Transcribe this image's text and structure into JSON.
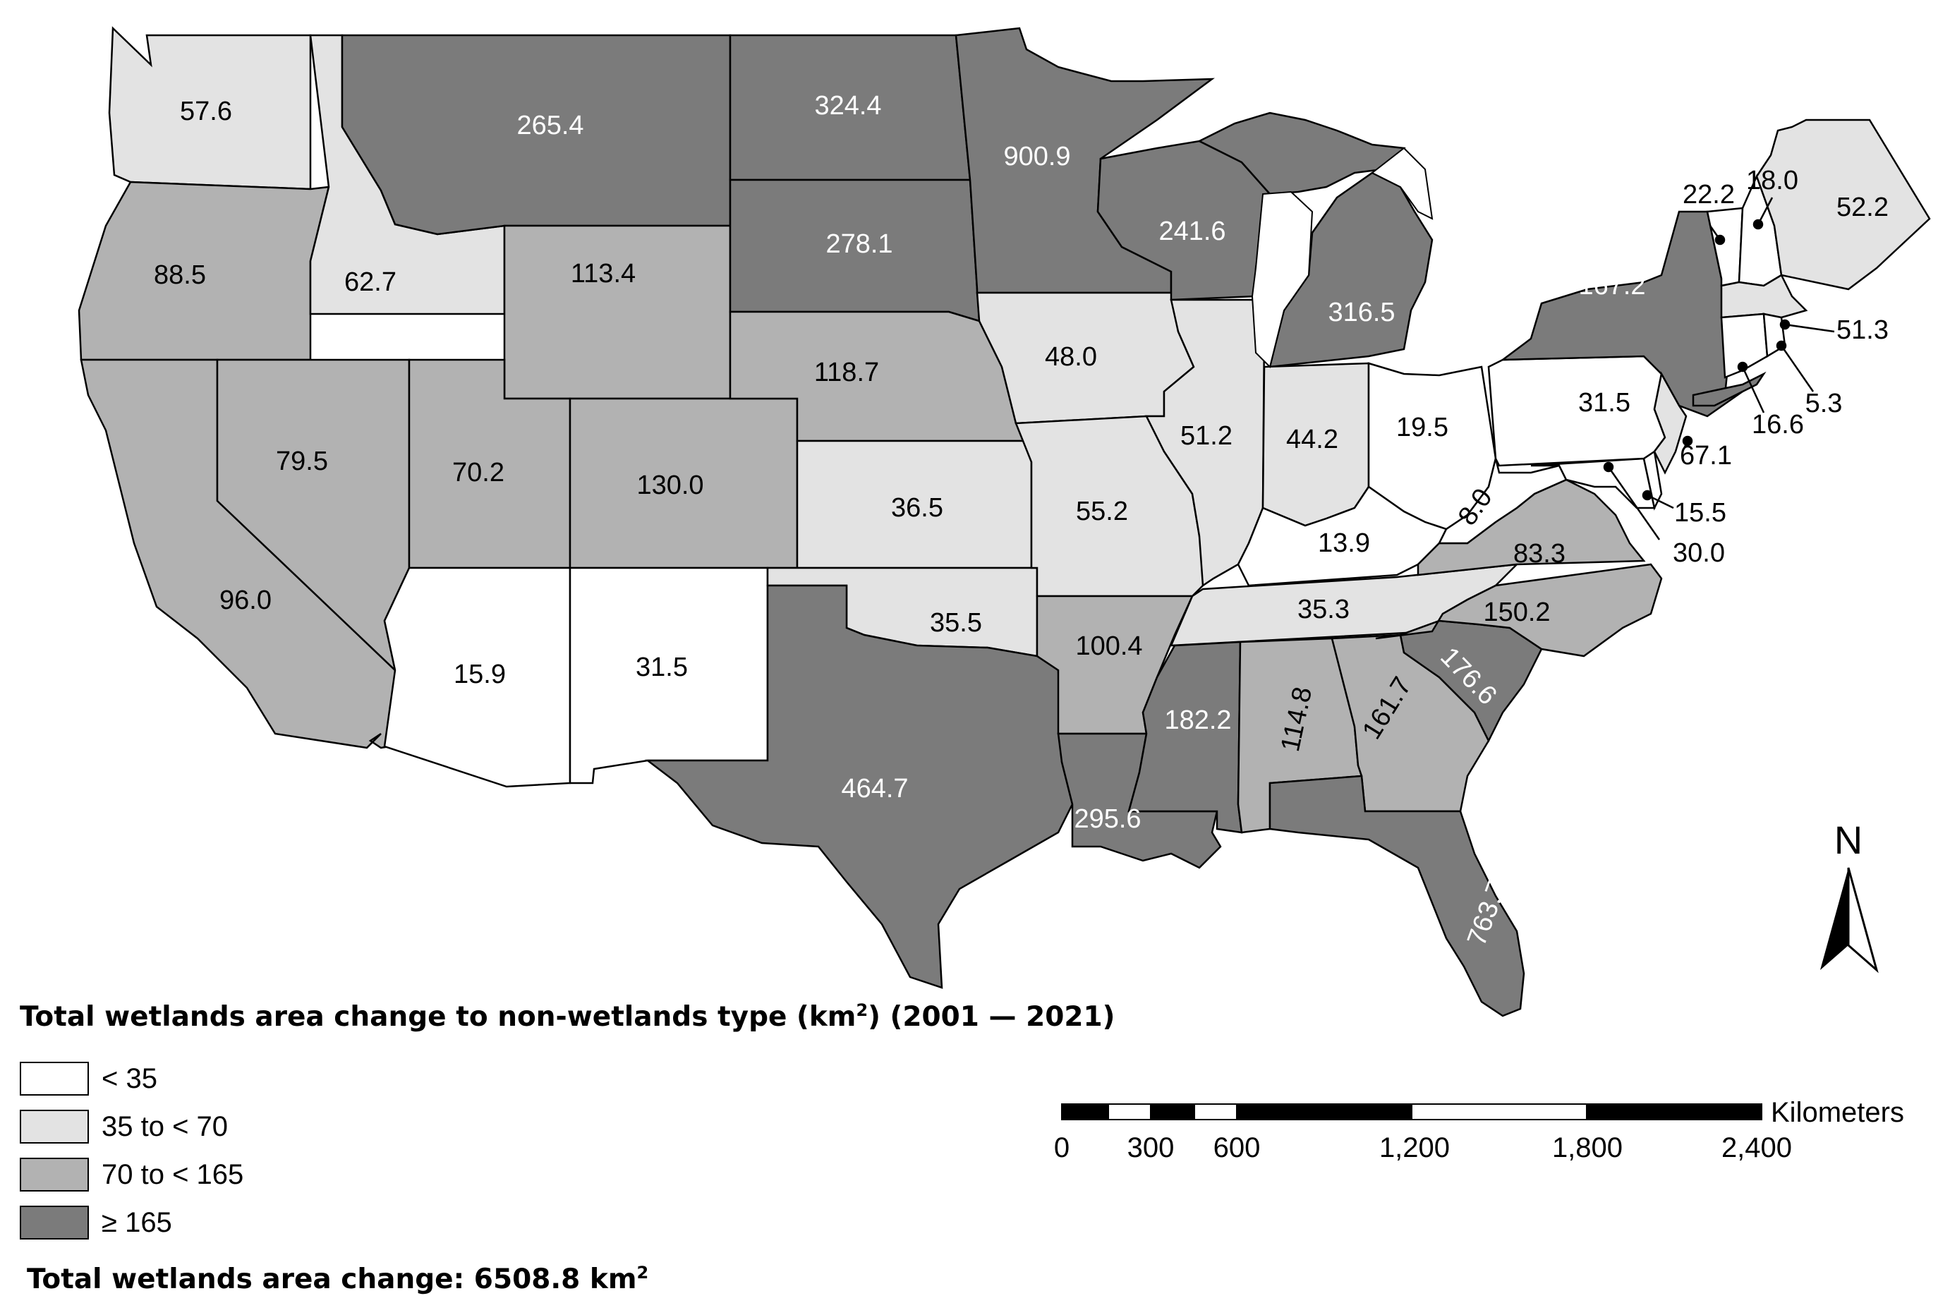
{
  "colors": {
    "under_35": "#ffffff",
    "35_to_70": "#e3e3e3",
    "70_to_165": "#b2b2b2",
    "165_plus": "#7b7b7b",
    "border": "#000000"
  },
  "states": [
    {
      "id": "WA",
      "value": "57.6",
      "cls": "35_to_70"
    },
    {
      "id": "OR",
      "value": "88.5",
      "cls": "70_to_165"
    },
    {
      "id": "CA",
      "value": "96.0",
      "cls": "70_to_165"
    },
    {
      "id": "ID",
      "value": "62.7",
      "cls": "35_to_70"
    },
    {
      "id": "NV",
      "value": "79.5",
      "cls": "70_to_165"
    },
    {
      "id": "MT",
      "value": "265.4",
      "cls": "165_plus"
    },
    {
      "id": "WY",
      "value": "113.4",
      "cls": "70_to_165"
    },
    {
      "id": "UT",
      "value": "70.2",
      "cls": "70_to_165"
    },
    {
      "id": "CO",
      "value": "130.0",
      "cls": "70_to_165"
    },
    {
      "id": "AZ",
      "value": "15.9",
      "cls": "under_35"
    },
    {
      "id": "NM",
      "value": "31.5",
      "cls": "under_35"
    },
    {
      "id": "ND",
      "value": "324.4",
      "cls": "165_plus"
    },
    {
      "id": "SD",
      "value": "278.1",
      "cls": "165_plus"
    },
    {
      "id": "NE",
      "value": "118.7",
      "cls": "70_to_165"
    },
    {
      "id": "KS",
      "value": "36.5",
      "cls": "35_to_70"
    },
    {
      "id": "OK",
      "value": "35.5",
      "cls": "35_to_70"
    },
    {
      "id": "TX",
      "value": "464.7",
      "cls": "165_plus"
    },
    {
      "id": "MN",
      "value": "900.9",
      "cls": "165_plus"
    },
    {
      "id": "IA",
      "value": "48.0",
      "cls": "35_to_70"
    },
    {
      "id": "MO",
      "value": "55.2",
      "cls": "35_to_70"
    },
    {
      "id": "AR",
      "value": "100.4",
      "cls": "70_to_165"
    },
    {
      "id": "LA",
      "value": "295.6",
      "cls": "165_plus"
    },
    {
      "id": "WI",
      "value": "241.6",
      "cls": "165_plus"
    },
    {
      "id": "IL",
      "value": "51.2",
      "cls": "35_to_70"
    },
    {
      "id": "MI",
      "value": "316.5",
      "cls": "165_plus"
    },
    {
      "id": "IN",
      "value": "44.2",
      "cls": "35_to_70"
    },
    {
      "id": "OH",
      "value": "19.5",
      "cls": "under_35"
    },
    {
      "id": "KY",
      "value": "13.9",
      "cls": "under_35"
    },
    {
      "id": "TN",
      "value": "35.3",
      "cls": "35_to_70"
    },
    {
      "id": "MS",
      "value": "182.2",
      "cls": "165_plus"
    },
    {
      "id": "AL",
      "value": "114.8",
      "cls": "70_to_165"
    },
    {
      "id": "GA",
      "value": "161.7",
      "cls": "70_to_165"
    },
    {
      "id": "FL",
      "value": "763.7",
      "cls": "165_plus"
    },
    {
      "id": "SC",
      "value": "176.6",
      "cls": "165_plus"
    },
    {
      "id": "NC",
      "value": "150.2",
      "cls": "70_to_165"
    },
    {
      "id": "VA",
      "value": "83.3",
      "cls": "70_to_165"
    },
    {
      "id": "WV",
      "value": "8.0",
      "cls": "under_35"
    },
    {
      "id": "PA",
      "value": "31.5",
      "cls": "under_35"
    },
    {
      "id": "NY",
      "value": "167.2",
      "cls": "165_plus"
    },
    {
      "id": "VT",
      "value": "22.2",
      "cls": "under_35"
    },
    {
      "id": "NH",
      "value": "18.0",
      "cls": "under_35"
    },
    {
      "id": "ME",
      "value": "52.2",
      "cls": "35_to_70"
    },
    {
      "id": "MA",
      "value": "51.3",
      "cls": "35_to_70"
    },
    {
      "id": "CT",
      "value": "16.6",
      "cls": "under_35"
    },
    {
      "id": "RI",
      "value": "5.3",
      "cls": "under_35"
    },
    {
      "id": "NJ",
      "value": "67.1",
      "cls": "35_to_70"
    },
    {
      "id": "DE",
      "value": "15.5",
      "cls": "under_35"
    },
    {
      "id": "MD",
      "value": "30.0",
      "cls": "under_35"
    }
  ],
  "legend": {
    "title": "Total wetlands area change to non-wetlands type (km",
    "title_sup": "2",
    "title_tail": ") (2001 — 2021)",
    "items": [
      {
        "label": "< 35",
        "cls": "under_35"
      },
      {
        "label": "35 to < 70",
        "cls": "35_to_70"
      },
      {
        "label": "70 to < 165",
        "cls": "70_to_165"
      },
      {
        "label": "≥ 165",
        "cls": "165_plus"
      }
    ]
  },
  "total": {
    "text": "Total wetlands area change: 6508.8 km",
    "sup": "2"
  },
  "scalebar": {
    "ticks": [
      "0",
      "300",
      "600",
      "1,200",
      "1,800",
      "2,400"
    ],
    "unit": "Kilometers"
  },
  "north_label": "N"
}
